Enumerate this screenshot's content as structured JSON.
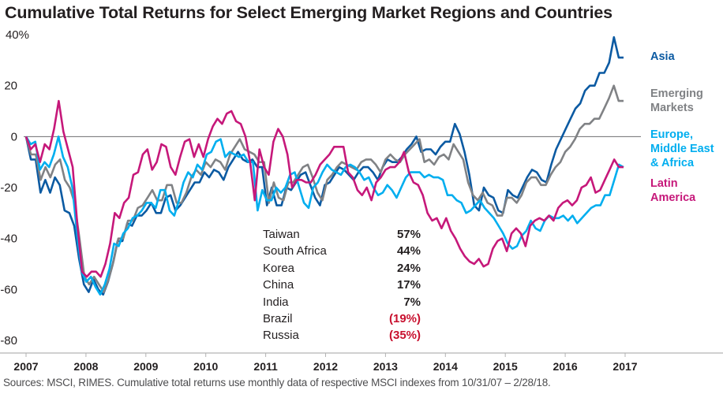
{
  "title": "Cumulative Total Returns for Select Emerging Market Regions and Countries",
  "source": "Sources: MSCI, RIMES. Cumulative total returns use monthly data of respective MSCI indexes from 10/31/07 – 2/28/18.",
  "country_table": [
    {
      "name": "Taiwan",
      "value": "57%",
      "negative": false
    },
    {
      "name": "South Africa",
      "value": "44%",
      "negative": false
    },
    {
      "name": "Korea",
      "value": "24%",
      "negative": false
    },
    {
      "name": "China",
      "value": "17%",
      "negative": false
    },
    {
      "name": "India",
      "value": "7%",
      "negative": false
    },
    {
      "name": "Brazil",
      "value": "(19%)",
      "negative": true
    },
    {
      "name": "Russia",
      "value": "(35%)",
      "negative": true
    }
  ],
  "chart_data": {
    "type": "line",
    "title": "Cumulative Total Returns for Select Emerging Market Regions and Countries",
    "xlabel": "",
    "ylabel": "",
    "ylim": [
      -80,
      40
    ],
    "y_ticks": [
      40,
      20,
      0,
      -20,
      -40,
      -60,
      -80
    ],
    "y_tick_labels": [
      "40%",
      "20",
      "0",
      "-20",
      "-40",
      "-60",
      "-80"
    ],
    "x_ticks": [
      2007,
      2008,
      2009,
      2010,
      2011,
      2012,
      2013,
      2014,
      2015,
      2016,
      2017
    ],
    "x_tick_labels": [
      "2007",
      "2008",
      "2009",
      "2010",
      "2011",
      "2012",
      "2013",
      "2014",
      "2015",
      "2016",
      "2017"
    ],
    "x_start": "2007-10",
    "x_end": "2018-02",
    "grid": false,
    "zero_line": true,
    "legend": "right (direct labels)",
    "series": [
      {
        "name": "Asia",
        "label": "Asia",
        "color": "#0b5aa2",
        "values": [
          0,
          -9,
          -9,
          -22,
          -17,
          -22,
          -16,
          -19,
          -29,
          -30,
          -35,
          -48,
          -58,
          -61,
          -56,
          -60,
          -62,
          -57,
          -50,
          -41,
          -41,
          -34,
          -35,
          -31,
          -31,
          -29,
          -26,
          -30,
          -30,
          -24,
          -23,
          -29,
          -27,
          -24,
          -21,
          -18,
          -18,
          -14,
          -16,
          -13,
          -14,
          -17,
          -12,
          -9,
          -6,
          -9,
          -10,
          -9,
          -12,
          -12,
          -27,
          -20,
          -27,
          -27,
          -20,
          -21,
          -18,
          -15,
          -14,
          -19,
          -24,
          -27,
          -19,
          -18,
          -15,
          -12,
          -13,
          -15,
          -17,
          -14,
          -12,
          -12,
          -14,
          -17,
          -12,
          -9,
          -10,
          -10,
          -8,
          -5,
          -3,
          0,
          -6,
          -5,
          -5,
          -7,
          -4,
          -2,
          -2,
          5,
          1,
          -6,
          -15,
          -27,
          -29,
          -20,
          -23,
          -24,
          -29,
          -30,
          -21,
          -23,
          -24,
          -20,
          -16,
          -13,
          -14,
          -17,
          -18,
          -11,
          -5,
          -1,
          3,
          7,
          11,
          13,
          18,
          20,
          20,
          25,
          25,
          29,
          39,
          31,
          31
        ]
      },
      {
        "name": "Emerging Markets",
        "label": "Emerging\nMarkets",
        "color": "#808285",
        "values": [
          0,
          -7,
          -7,
          -17,
          -12,
          -16,
          -11,
          -9,
          -17,
          -20,
          -26,
          -40,
          -55,
          -58,
          -55,
          -58,
          -61,
          -56,
          -49,
          -40,
          -40,
          -33,
          -33,
          -28,
          -27,
          -24,
          -21,
          -25,
          -25,
          -19,
          -19,
          -26,
          -26,
          -22,
          -16,
          -13,
          -15,
          -10,
          -12,
          -9,
          -10,
          -13,
          -7,
          -4,
          -1,
          -5,
          -6,
          -7,
          -10,
          -10,
          -26,
          -18,
          -24,
          -25,
          -18,
          -18,
          -15,
          -12,
          -11,
          -16,
          -22,
          -25,
          -17,
          -15,
          -12,
          -10,
          -11,
          -12,
          -13,
          -10,
          -9,
          -9,
          -11,
          -14,
          -9,
          -7,
          -9,
          -10,
          -7,
          -5,
          -3,
          -1,
          -10,
          -9,
          -11,
          -8,
          -7,
          -9,
          -3,
          -6,
          -9,
          -18,
          -23,
          -25,
          -22,
          -26,
          -27,
          -31,
          -31,
          -24,
          -24,
          -26,
          -23,
          -18,
          -16,
          -16,
          -19,
          -19,
          -15,
          -12,
          -10,
          -6,
          -4,
          -1,
          3,
          5,
          5,
          7,
          7,
          11,
          15,
          20,
          14,
          14
        ]
      },
      {
        "name": "Europe, Middle East & Africa",
        "label": "Europe,\nMiddle East\n& Africa",
        "color": "#00aeef",
        "values": [
          0,
          -3,
          -2,
          -13,
          -10,
          -12,
          -7,
          0,
          -8,
          -12,
          -20,
          -38,
          -53,
          -57,
          -55,
          -59,
          -62,
          -58,
          -52,
          -42,
          -43,
          -38,
          -36,
          -32,
          -31,
          -29,
          -26,
          -26,
          -28,
          -21,
          -21,
          -29,
          -31,
          -25,
          -18,
          -14,
          -16,
          -11,
          -13,
          -7,
          -6,
          -2,
          -1,
          -8,
          -6,
          -7,
          -8,
          -7,
          -10,
          -10,
          -29,
          -21,
          -25,
          -25,
          -20,
          -22,
          -20,
          -15,
          -14,
          -20,
          -26,
          -28,
          -20,
          -18,
          -14,
          -11,
          -13,
          -14,
          -15,
          -12,
          -11,
          -12,
          -14,
          -17,
          -16,
          -20,
          -23,
          -22,
          -19,
          -21,
          -24,
          -20,
          -16,
          -14,
          -14,
          -14,
          -16,
          -15,
          -16,
          -16,
          -17,
          -23,
          -23,
          -25,
          -26,
          -30,
          -29,
          -27,
          -25,
          -28,
          -30,
          -32,
          -35,
          -38,
          -42,
          -44,
          -43,
          -39,
          -37,
          -33,
          -36,
          -37,
          -33,
          -31,
          -32,
          -32,
          -31,
          -33,
          -31,
          -34,
          -32,
          -30,
          -28,
          -27,
          -27,
          -23,
          -23,
          -17,
          -11,
          -12
        ]
      },
      {
        "name": "Latin America",
        "label": "Latin\nAmerica",
        "color": "#c6187a",
        "values": [
          0,
          -5,
          -3,
          -10,
          -3,
          -5,
          3,
          14,
          2,
          -5,
          -12,
          -35,
          -53,
          -55,
          -53,
          -53,
          -55,
          -50,
          -42,
          -30,
          -32,
          -26,
          -24,
          -15,
          -14,
          -7,
          -5,
          -13,
          -10,
          -3,
          -4,
          -12,
          -15,
          -8,
          -2,
          -1,
          -8,
          -3,
          -8,
          -1,
          4,
          7,
          5,
          9,
          10,
          6,
          5,
          0,
          -10,
          -25,
          -5,
          -12,
          -15,
          -2,
          3,
          0,
          -7,
          -20,
          -17,
          -17,
          -18,
          -18,
          -15,
          -11,
          -9,
          -7,
          -4,
          -4,
          -4,
          -14,
          -16,
          -21,
          -23,
          -20,
          -25,
          -18,
          -16,
          -13,
          -12,
          -12,
          -10,
          -6,
          -14,
          -18,
          -19,
          -23,
          -30,
          -33,
          -32,
          -36,
          -32,
          -37,
          -40,
          -44,
          -47,
          -49,
          -50,
          -48,
          -51,
          -50,
          -44,
          -41,
          -40,
          -45,
          -38,
          -36,
          -38,
          -43,
          -35,
          -33,
          -32,
          -33,
          -31,
          -33,
          -28,
          -26,
          -25,
          -27,
          -25,
          -20,
          -19,
          -16,
          -22,
          -21,
          -17,
          -13,
          -9,
          -12,
          -12
        ]
      }
    ]
  }
}
